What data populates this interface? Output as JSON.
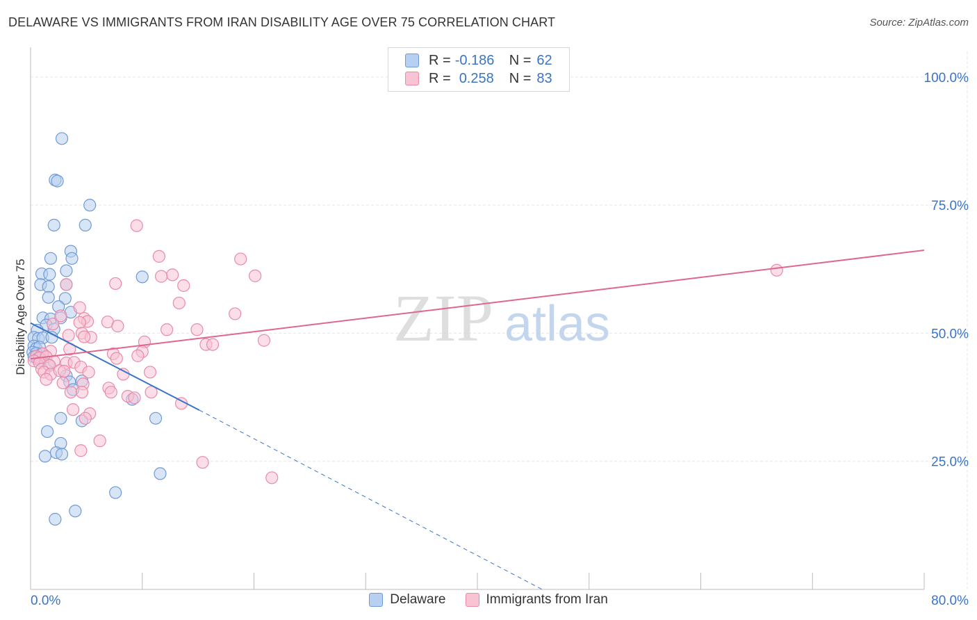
{
  "title": "DELAWARE VS IMMIGRANTS FROM IRAN DISABILITY AGE OVER 75 CORRELATION CHART",
  "source": "Source: ZipAtlas.com",
  "watermark": {
    "zip": "ZIP",
    "atlas": "atlas"
  },
  "colors": {
    "blue_fill": "#b7cff0",
    "blue_stroke": "#6f9ad6",
    "blue_line": "#3a73c9",
    "pink_fill": "#f8c3d3",
    "pink_stroke": "#e98aa8",
    "pink_line": "#e06690",
    "grid": "#e6e6e6",
    "tick_label": "#3b74c4"
  },
  "legend": {
    "rows": [
      {
        "r_label": "R =",
        "r_value": "-0.186",
        "n_label": "N =",
        "n_value": "62",
        "series": "blue"
      },
      {
        "r_label": "R =",
        "r_value": "0.258",
        "n_label": "N =",
        "n_value": "83",
        "series": "pink"
      }
    ]
  },
  "chart_data": {
    "type": "scatter",
    "title": "DELAWARE VS IMMIGRANTS FROM IRAN DISABILITY AGE OVER 75 CORRELATION CHART",
    "xlabel": "",
    "ylabel": "Disability Age Over 75",
    "xlim": [
      0,
      80
    ],
    "ylim": [
      0,
      105
    ],
    "x_tick_labels": [
      {
        "value": 0,
        "label": "0.0%"
      },
      {
        "value": 80,
        "label": "80.0%"
      }
    ],
    "y_tick_labels": [
      {
        "value": 25,
        "label": "25.0%"
      },
      {
        "value": 50,
        "label": "50.0%"
      },
      {
        "value": 75,
        "label": "75.0%"
      },
      {
        "value": 100,
        "label": "100.0%"
      }
    ],
    "grid": true,
    "legend_position": "top-center",
    "series": [
      {
        "name": "Delaware",
        "color": "blue",
        "points": [
          [
            2.8,
            88.0
          ],
          [
            2.2,
            79.9
          ],
          [
            2.4,
            79.7
          ],
          [
            5.3,
            75.0
          ],
          [
            2.1,
            71.1
          ],
          [
            4.9,
            71.1
          ],
          [
            3.6,
            66.0
          ],
          [
            1.8,
            64.6
          ],
          [
            3.7,
            64.6
          ],
          [
            1.0,
            61.6
          ],
          [
            1.7,
            61.5
          ],
          [
            3.2,
            62.2
          ],
          [
            10.0,
            61.0
          ],
          [
            0.9,
            59.5
          ],
          [
            1.6,
            59.1
          ],
          [
            3.2,
            59.5
          ],
          [
            1.6,
            57.0
          ],
          [
            3.1,
            56.8
          ],
          [
            2.5,
            55.2
          ],
          [
            3.6,
            54.1
          ],
          [
            1.1,
            53.0
          ],
          [
            1.8,
            52.8
          ],
          [
            2.7,
            53.0
          ],
          [
            1.4,
            51.6
          ],
          [
            0.6,
            50.6
          ],
          [
            2.1,
            50.8
          ],
          [
            0.3,
            49.2
          ],
          [
            0.7,
            49.0
          ],
          [
            1.1,
            49.1
          ],
          [
            1.9,
            49.2
          ],
          [
            0.3,
            47.5
          ],
          [
            0.5,
            47.0
          ],
          [
            0.8,
            47.3
          ],
          [
            0.2,
            46.3
          ],
          [
            0.5,
            46.1
          ],
          [
            1.0,
            46.0
          ],
          [
            0.3,
            45.4
          ],
          [
            0.6,
            45.0
          ],
          [
            0.9,
            44.7
          ],
          [
            1.6,
            43.9
          ],
          [
            3.2,
            41.7
          ],
          [
            3.5,
            40.5
          ],
          [
            4.6,
            40.7
          ],
          [
            3.8,
            39.0
          ],
          [
            9.1,
            37.1
          ],
          [
            2.7,
            33.4
          ],
          [
            4.6,
            32.9
          ],
          [
            11.2,
            33.4
          ],
          [
            1.5,
            30.8
          ],
          [
            2.7,
            28.5
          ],
          [
            2.3,
            26.7
          ],
          [
            2.8,
            26.4
          ],
          [
            1.3,
            26.0
          ],
          [
            11.6,
            22.6
          ],
          [
            7.6,
            18.9
          ],
          [
            4.0,
            15.3
          ],
          [
            2.2,
            13.7
          ]
        ]
      },
      {
        "name": "Immigrants from Iran",
        "color": "pink",
        "points": [
          [
            9.5,
            71.0
          ],
          [
            11.5,
            65.0
          ],
          [
            18.8,
            64.5
          ],
          [
            12.7,
            61.4
          ],
          [
            11.7,
            61.1
          ],
          [
            20.1,
            61.2
          ],
          [
            7.6,
            59.7
          ],
          [
            13.7,
            59.3
          ],
          [
            3.2,
            59.5
          ],
          [
            66.8,
            62.3
          ],
          [
            13.3,
            55.9
          ],
          [
            4.4,
            55.0
          ],
          [
            2.0,
            51.8
          ],
          [
            2.7,
            53.4
          ],
          [
            4.8,
            52.9
          ],
          [
            5.1,
            52.3
          ],
          [
            4.4,
            52.1
          ],
          [
            6.9,
            52.2
          ],
          [
            7.8,
            51.4
          ],
          [
            18.3,
            53.8
          ],
          [
            12.2,
            50.7
          ],
          [
            14.9,
            50.7
          ],
          [
            4.6,
            50.0
          ],
          [
            5.4,
            49.2
          ],
          [
            4.8,
            49.3
          ],
          [
            3.4,
            49.6
          ],
          [
            20.9,
            48.6
          ],
          [
            10.2,
            48.3
          ],
          [
            15.7,
            47.8
          ],
          [
            16.3,
            47.8
          ],
          [
            3.5,
            46.9
          ],
          [
            1.8,
            46.5
          ],
          [
            1.1,
            46.0
          ],
          [
            7.4,
            46.0
          ],
          [
            10.0,
            46.4
          ],
          [
            9.6,
            45.6
          ],
          [
            0.5,
            45.5
          ],
          [
            0.8,
            45.2
          ],
          [
            1.4,
            45.4
          ],
          [
            7.7,
            45.1
          ],
          [
            0.3,
            44.6
          ],
          [
            0.8,
            44.2
          ],
          [
            2.1,
            44.5
          ],
          [
            3.2,
            44.2
          ],
          [
            3.9,
            44.3
          ],
          [
            1.0,
            43.0
          ],
          [
            1.7,
            43.7
          ],
          [
            4.5,
            43.4
          ],
          [
            1.2,
            42.4
          ],
          [
            1.8,
            42.0
          ],
          [
            2.6,
            42.7
          ],
          [
            3.0,
            42.6
          ],
          [
            5.2,
            42.4
          ],
          [
            8.3,
            42.0
          ],
          [
            10.7,
            42.4
          ],
          [
            1.4,
            41.0
          ],
          [
            2.9,
            40.3
          ],
          [
            4.7,
            40.1
          ],
          [
            7.0,
            39.3
          ],
          [
            3.6,
            38.5
          ],
          [
            4.6,
            38.5
          ],
          [
            7.2,
            38.5
          ],
          [
            10.8,
            38.5
          ],
          [
            8.7,
            37.7
          ],
          [
            9.3,
            37.4
          ],
          [
            13.5,
            36.3
          ],
          [
            3.8,
            35.1
          ],
          [
            5.3,
            34.3
          ],
          [
            4.9,
            33.4
          ],
          [
            6.2,
            29.0
          ],
          [
            4.5,
            27.1
          ],
          [
            15.4,
            24.8
          ],
          [
            21.6,
            21.8
          ]
        ]
      }
    ],
    "trend_lines": [
      {
        "series": "Delaware",
        "x_start": 0,
        "y_start": 52.0,
        "x_solid_end": 15.1,
        "y_solid_end": 35.0,
        "x_dash_end": 45.8,
        "y_dash_end": 0
      },
      {
        "series": "Immigrants from Iran",
        "x_start": 0,
        "y_start": 45.0,
        "x_end": 80,
        "y_end": 66.2
      }
    ]
  },
  "bottom_legend": [
    {
      "label": "Delaware",
      "series": "blue"
    },
    {
      "label": "Immigrants from Iran",
      "series": "pink"
    }
  ]
}
